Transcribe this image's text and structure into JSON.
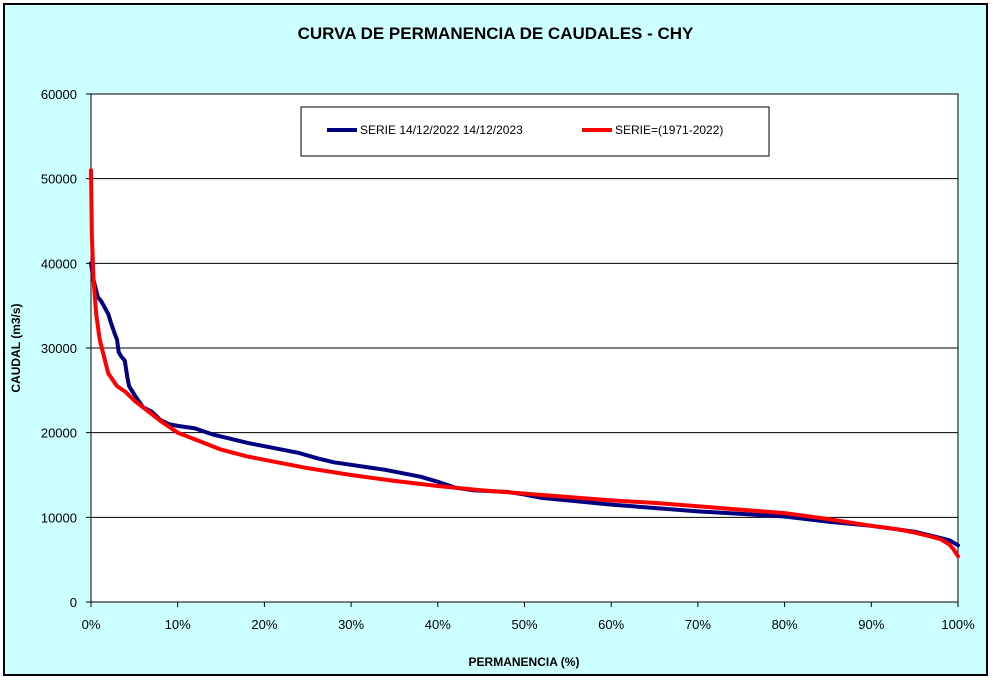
{
  "chart_data": {
    "type": "line",
    "title": "CURVA DE PERMANENCIA DE CAUDALES - CHY",
    "xlabel": "PERMANENCIA (%)",
    "ylabel": "CAUDAL  (m3/s)",
    "xlim": [
      0,
      100
    ],
    "ylim": [
      0,
      60000
    ],
    "x_ticks": [
      "0%",
      "10%",
      "20%",
      "30%",
      "40%",
      "50%",
      "60%",
      "70%",
      "80%",
      "90%",
      "100%"
    ],
    "y_ticks": [
      "0",
      "10000",
      "20000",
      "30000",
      "40000",
      "50000",
      "60000"
    ],
    "grid": "horizontal",
    "legend_position": "top-center",
    "series": [
      {
        "name": "SERIE 14/12/2022 14/12/2023",
        "color": "#000080",
        "x": [
          0,
          0.3,
          0.8,
          1.2,
          2.0,
          2.3,
          2.8,
          3.0,
          3.2,
          3.5,
          3.9,
          4.2,
          4.4,
          5.0,
          6.0,
          7.0,
          8.0,
          9.0,
          10.0,
          12.0,
          14.0,
          16.0,
          18.0,
          20.0,
          22.0,
          24.0,
          26.0,
          28.0,
          30.0,
          32.0,
          34.0,
          36.0,
          38.0,
          40.0,
          42.0,
          44.0,
          46.0,
          48.0,
          50.0,
          52.0,
          55.0,
          60.0,
          65.0,
          70.0,
          75.0,
          80.0,
          85.0,
          90.0,
          95.0,
          97.0,
          99.0,
          100.0
        ],
        "y": [
          40000,
          38000,
          36000,
          35500,
          34000,
          33000,
          31500,
          31000,
          29500,
          29000,
          28500,
          26500,
          25500,
          24500,
          23000,
          22500,
          21500,
          21000,
          20800,
          20500,
          19800,
          19300,
          18800,
          18400,
          18000,
          17600,
          17000,
          16500,
          16200,
          15900,
          15600,
          15200,
          14800,
          14200,
          13500,
          13200,
          13100,
          13000,
          12700,
          12300,
          12000,
          11500,
          11100,
          10700,
          10400,
          10100,
          9500,
          9000,
          8300,
          7800,
          7300,
          6700
        ]
      },
      {
        "name": "SERIE=(1971-2022)",
        "color": "#ff0000",
        "x": [
          0,
          0.1,
          0.3,
          0.6,
          1.0,
          1.5,
          2.0,
          3.0,
          4.0,
          5.0,
          6.0,
          7.0,
          8.0,
          10.0,
          12.0,
          15.0,
          18.0,
          20.0,
          25.0,
          30.0,
          35.0,
          40.0,
          45.0,
          50.0,
          55.0,
          60.0,
          65.0,
          70.0,
          75.0,
          80.0,
          85.0,
          90.0,
          93.0,
          95.0,
          97.0,
          98.0,
          99.0,
          99.5,
          100.0
        ],
        "y": [
          51000,
          43000,
          38000,
          34000,
          31000,
          29000,
          27000,
          25500,
          24800,
          23800,
          23000,
          22200,
          21400,
          20000,
          19200,
          18000,
          17200,
          16800,
          15800,
          15000,
          14300,
          13700,
          13200,
          12800,
          12400,
          12000,
          11700,
          11300,
          10900,
          10500,
          9800,
          9000,
          8600,
          8200,
          7700,
          7400,
          6800,
          6200,
          5400
        ]
      }
    ]
  }
}
